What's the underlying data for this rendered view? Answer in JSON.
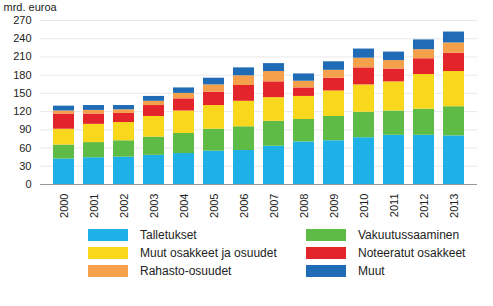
{
  "chart_data": {
    "type": "bar",
    "stacked": true,
    "ylabel": "mrd. euroa",
    "categories": [
      "2000",
      "2001",
      "2002",
      "2003",
      "2004",
      "2005",
      "2006",
      "2007",
      "2008",
      "2009",
      "2010",
      "2011",
      "2012",
      "2013"
    ],
    "series": [
      {
        "name": "Talletukset",
        "color": "#1eb1e7",
        "values": [
          42,
          44,
          45,
          48,
          51,
          55,
          56,
          63,
          70,
          72,
          77,
          81,
          81,
          80
        ]
      },
      {
        "name": "Vakuutussaaminen",
        "color": "#5dbb46",
        "values": [
          23,
          25,
          27,
          30,
          33,
          36,
          39,
          41,
          37,
          40,
          42,
          40,
          43,
          48
        ]
      },
      {
        "name": "Muut osakkeet ja osuudet",
        "color": "#f9d71c",
        "values": [
          26,
          30,
          30,
          34,
          37,
          39,
          42,
          39,
          38,
          42,
          45,
          48,
          57,
          58
        ]
      },
      {
        "name": "Noteeratut osakkeet",
        "color": "#e3242b",
        "values": [
          25,
          17,
          15,
          18,
          20,
          22,
          26,
          26,
          14,
          21,
          28,
          21,
          26,
          30
        ]
      },
      {
        "name": "Rahasto-osuudet",
        "color": "#f5a04a",
        "values": [
          5,
          6,
          6,
          7,
          9,
          12,
          16,
          17,
          11,
          13,
          16,
          14,
          15,
          17
        ]
      },
      {
        "name": "Muut",
        "color": "#1f6bb5",
        "values": [
          8,
          8,
          7,
          8,
          9,
          11,
          13,
          13,
          12,
          14,
          15,
          14,
          16,
          18
        ]
      }
    ],
    "ylim": [
      0,
      270
    ],
    "yticks": [
      0,
      30,
      60,
      90,
      120,
      150,
      180,
      210,
      240,
      270
    ],
    "grid": true,
    "legend": "bottom"
  }
}
